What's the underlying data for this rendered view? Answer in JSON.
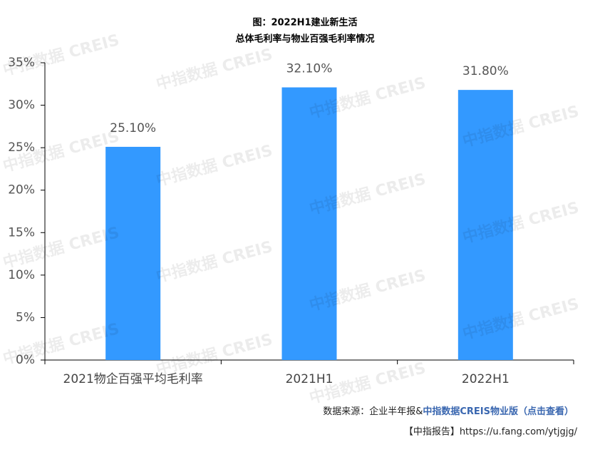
{
  "chart_data": {
    "type": "bar",
    "title": "图：2022H1建业新生活",
    "subtitle": "总体毛利率与物业百强毛利率情况",
    "categories": [
      "2021物企百强平均毛利率",
      "2021H1",
      "2022H1"
    ],
    "values": [
      25.1,
      32.1,
      31.8
    ],
    "value_labels": [
      "25.10%",
      "32.10%",
      "31.80%"
    ],
    "color": "#3399ff",
    "ylim": [
      0,
      35
    ],
    "yticks": [
      {
        "value": 0,
        "label": "0%"
      },
      {
        "value": 5,
        "label": "5%"
      },
      {
        "value": 10,
        "label": "10%"
      },
      {
        "value": 15,
        "label": "15%"
      },
      {
        "value": 20,
        "label": "20%"
      },
      {
        "value": 25,
        "label": "25%"
      },
      {
        "value": 30,
        "label": "30%"
      },
      {
        "value": 35,
        "label": "35%"
      }
    ],
    "grid": false
  },
  "watermark": "中指数据 CREIS",
  "source": {
    "prefix": "数据来源：企业半年报&",
    "link": "中指数据CREIS物业版（点击查看）"
  },
  "report": "【中指报告】https://u.fang.com/ytjgjg/"
}
